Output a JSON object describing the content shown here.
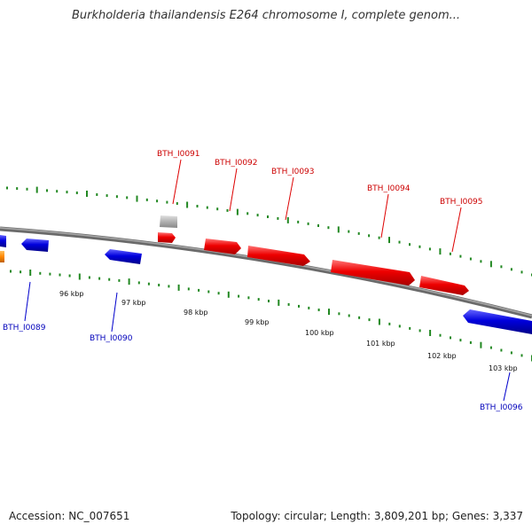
{
  "title": "Burkholderia thailandensis E264 chromosome I, complete genom...",
  "footer": {
    "accession": "Accession: NC_007651",
    "summary": "Topology: circular; Length: 3,809,201 bp; Genes: 3,337"
  },
  "colors": {
    "forward": "#dd0000",
    "reverse": "#0000cc",
    "pseudo": "#aaaaaa",
    "other": "#ff8800",
    "ticks": "#228822",
    "backbone": "#7a7a7a"
  },
  "kbp_labels": [
    "96 kbp",
    "97 kbp",
    "98 kbp",
    "99 kbp",
    "100 kbp",
    "101 kbp",
    "102 kbp",
    "103 kbp"
  ],
  "genes_forward": [
    "BTH_I0091",
    "BTH_I0092",
    "BTH_I0093",
    "BTH_I0094",
    "BTH_I0095"
  ],
  "genes_reverse": [
    "BTH_I0089",
    "BTH_I0090",
    "BTH_I0096"
  ]
}
